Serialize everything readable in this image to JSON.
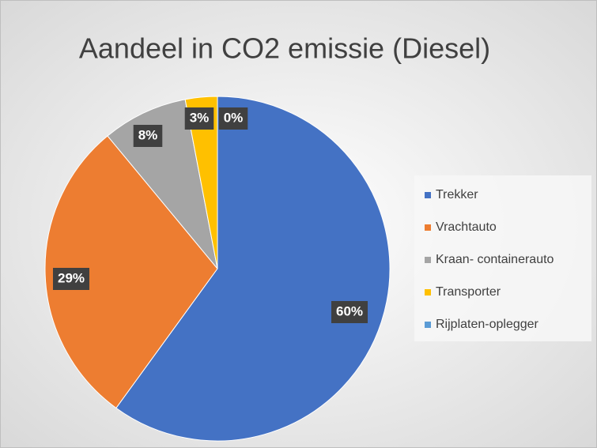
{
  "chart_data": {
    "type": "pie",
    "title": "Aandeel in CO2 emissie (Diesel)",
    "categories": [
      "Trekker",
      "Vrachtauto",
      "Kraan- containerauto",
      "Transporter",
      "Rijplaten-oplegger"
    ],
    "values": [
      60,
      29,
      8,
      3,
      0
    ],
    "value_labels": [
      "60%",
      "29%",
      "8%",
      "3%",
      "0%"
    ],
    "colors": [
      "#4472c4",
      "#ed7d31",
      "#a5a5a5",
      "#ffc000",
      "#5b9bd5"
    ],
    "legend": "right"
  }
}
